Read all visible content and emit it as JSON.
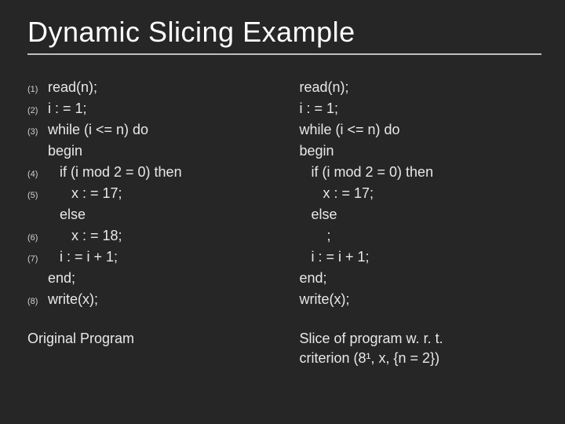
{
  "title": "Dynamic Slicing Example",
  "colors": {
    "background": "#262626",
    "text": "#e8e8e8",
    "title": "#ffffff",
    "rule": "#bfbfbf"
  },
  "typography": {
    "title_fontsize": 36,
    "body_fontsize": 18,
    "line_num_fontsize": 11,
    "font_family": "Arial"
  },
  "left": {
    "lines": [
      {
        "num": "(1)",
        "text": "read(n);"
      },
      {
        "num": "(2)",
        "text": "i : = 1;"
      },
      {
        "num": "(3)",
        "text": "while (i <= n) do"
      },
      {
        "num": "",
        "text": "begin"
      },
      {
        "num": "(4)",
        "text": "   if (i mod 2 = 0) then"
      },
      {
        "num": "(5)",
        "text": "      x : = 17;"
      },
      {
        "num": "",
        "text": "   else"
      },
      {
        "num": "(6)",
        "text": "      x : = 18;"
      },
      {
        "num": "(7)",
        "text": "   i : = i + 1;"
      },
      {
        "num": "",
        "text": "end;"
      },
      {
        "num": "(8)",
        "text": "write(x);"
      }
    ],
    "caption": "Original Program"
  },
  "right": {
    "lines": [
      {
        "text": "read(n);"
      },
      {
        "text": "i : = 1;"
      },
      {
        "text": "while (i <= n) do"
      },
      {
        "text": "begin"
      },
      {
        "text": "   if (i mod 2 = 0) then"
      },
      {
        "text": "      x : = 17;"
      },
      {
        "text": "   else"
      },
      {
        "text": "       ;"
      },
      {
        "text": "   i : = i + 1;"
      },
      {
        "text": "end;"
      },
      {
        "text": "write(x);"
      }
    ],
    "caption_line1": "Slice of program w. r. t.",
    "caption_line2": "criterion (8¹, x, {n = 2})"
  }
}
